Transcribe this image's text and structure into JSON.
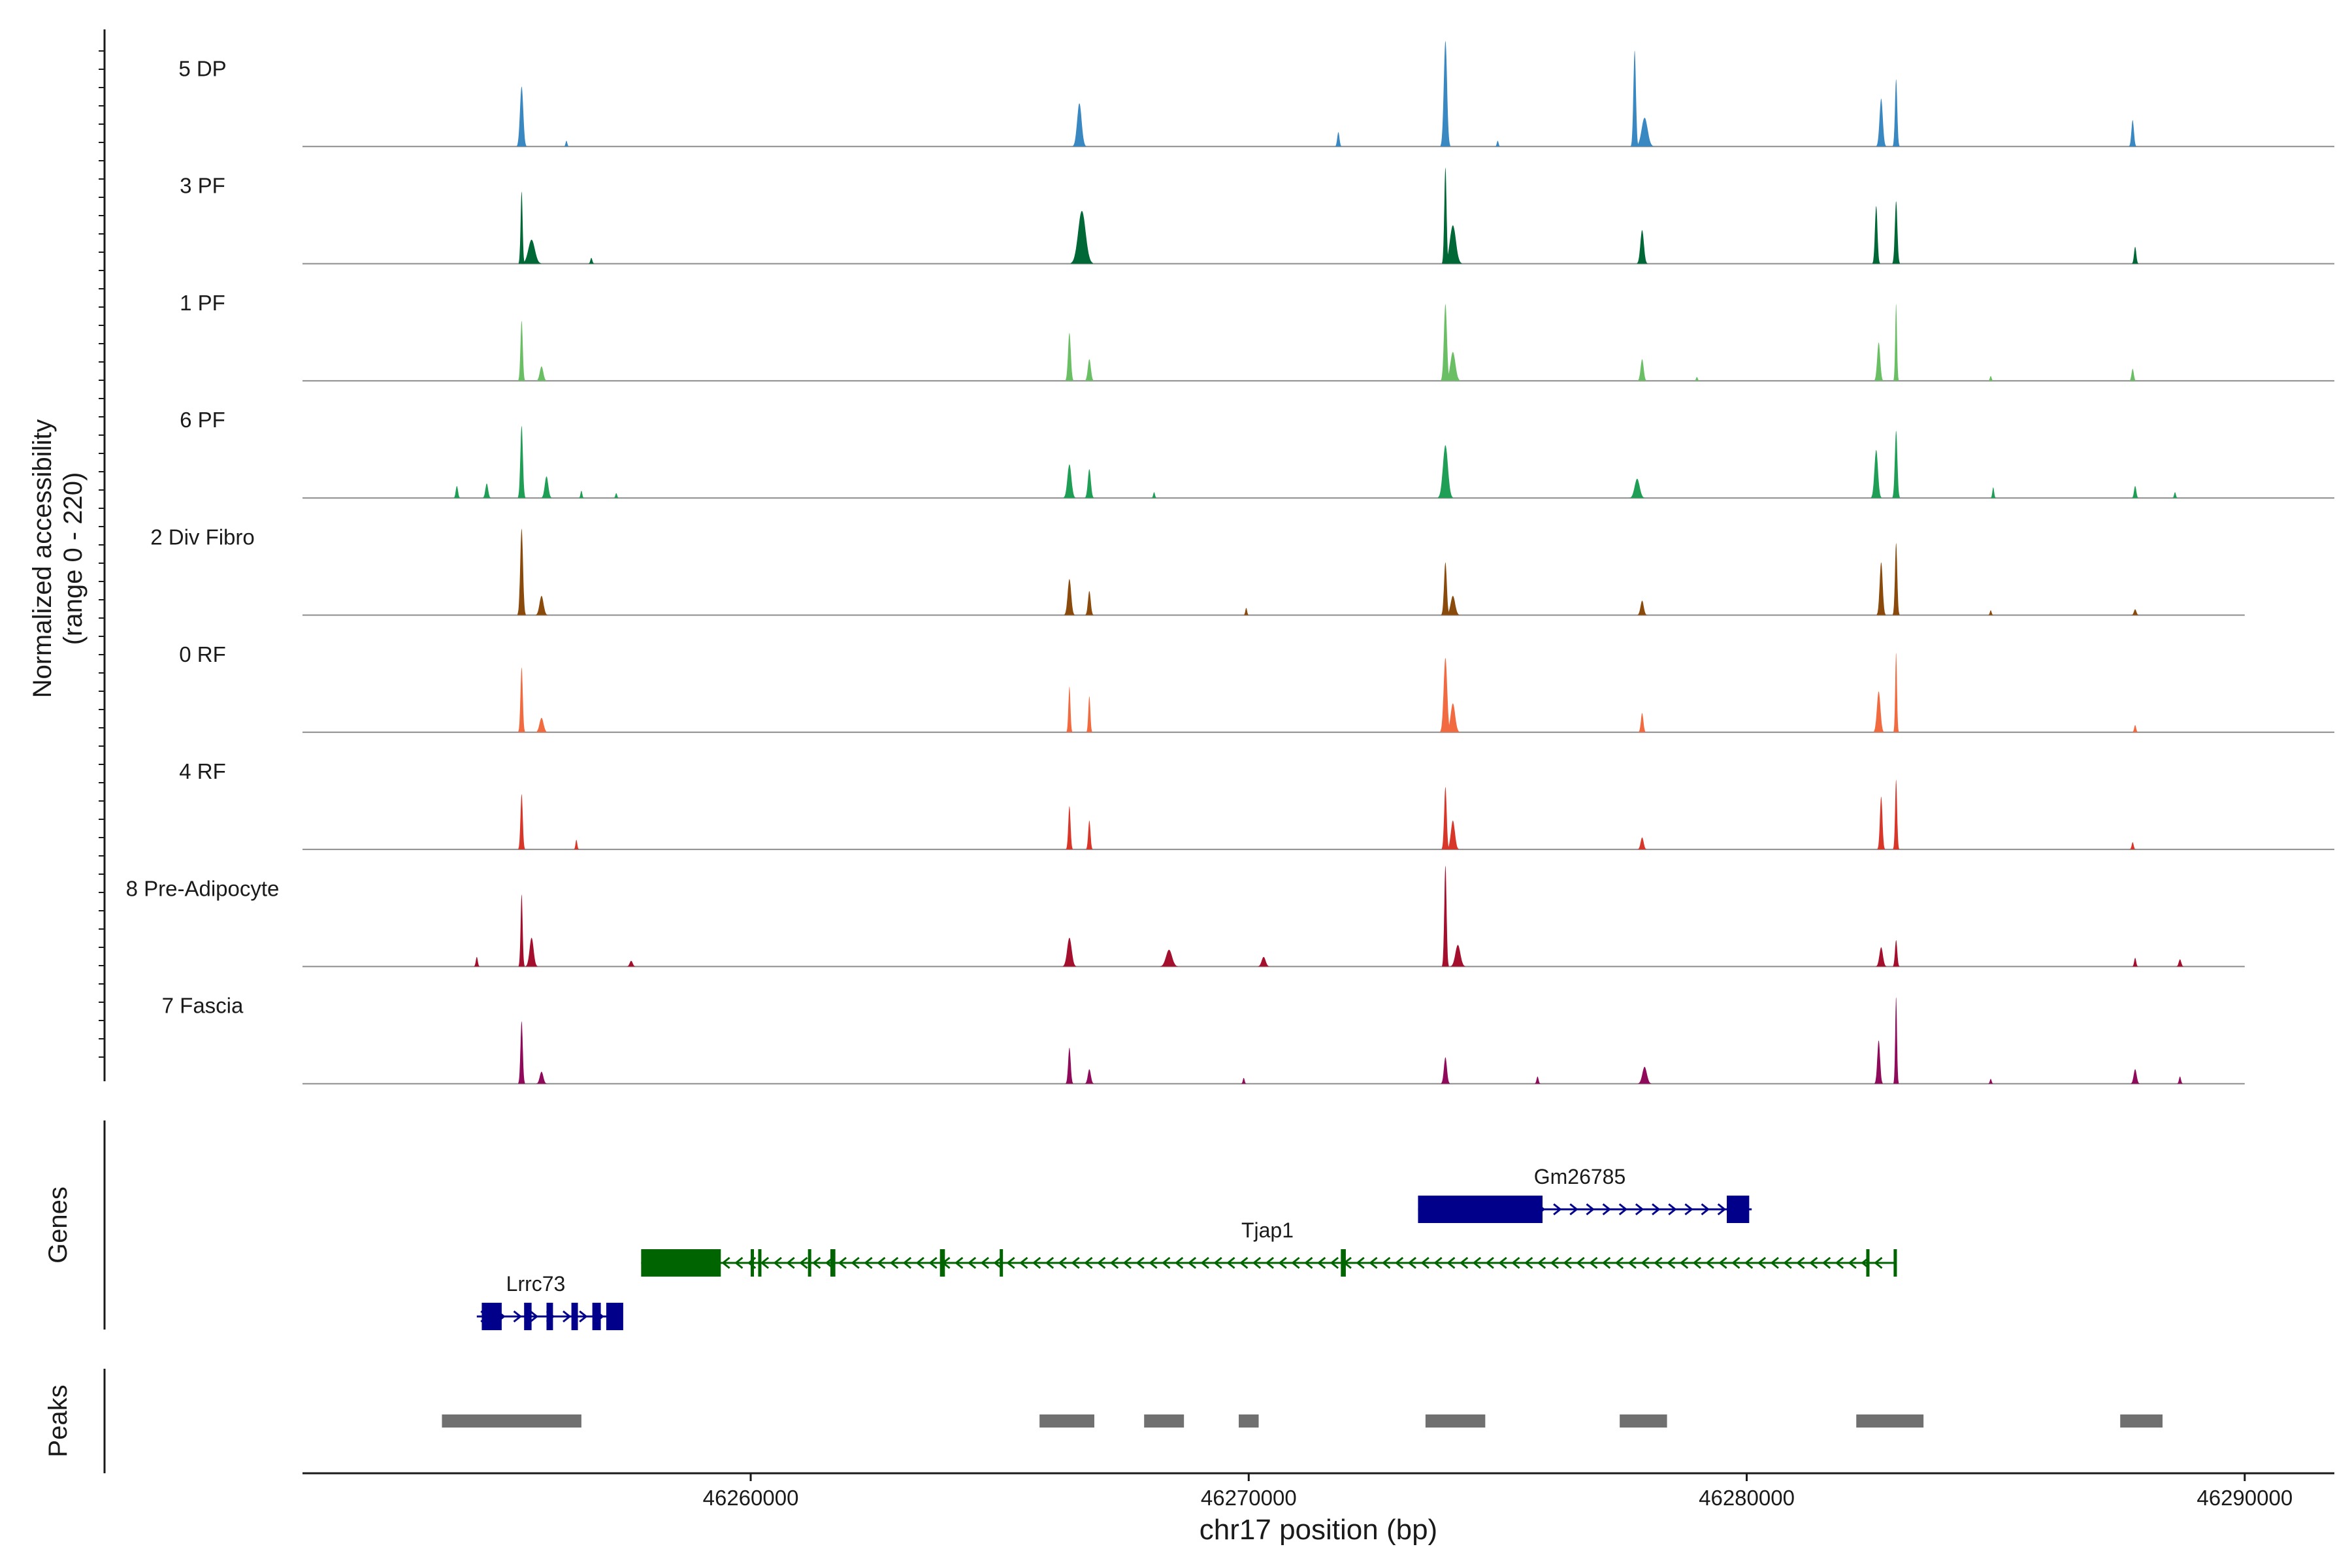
{
  "chart_data": {
    "type": "area",
    "title": "",
    "ylabel_line1": "Normalized accessibility",
    "ylabel_line2": "(range 0 - 220)",
    "yrange": [
      0,
      220
    ],
    "xlabel": "chr17 position (bp)",
    "chromosome": "chr17",
    "xlim": [
      46251000,
      46291800
    ],
    "xticks": [
      46260000,
      46270000,
      46280000,
      46290000
    ],
    "xtick_labels": [
      "46260000",
      "46270000",
      "46280000",
      "46290000"
    ],
    "coverage_tracks": [
      {
        "name": "5 DP",
        "color": "#3a88c2",
        "track_end": 46291800,
        "peaks": [
          [
            46255400,
            125,
            65
          ],
          [
            46256300,
            12,
            35
          ],
          [
            46266600,
            90,
            90
          ],
          [
            46271800,
            30,
            45
          ],
          [
            46273950,
            220,
            65
          ],
          [
            46275000,
            12,
            35
          ],
          [
            46277750,
            200,
            50
          ],
          [
            46277950,
            60,
            120
          ],
          [
            46282700,
            100,
            65
          ],
          [
            46283000,
            140,
            45
          ],
          [
            46287750,
            55,
            50
          ]
        ]
      },
      {
        "name": "3 PF",
        "color": "#006837",
        "track_end": 46291800,
        "peaks": [
          [
            46255400,
            150,
            40
          ],
          [
            46255600,
            50,
            130
          ],
          [
            46256800,
            12,
            40
          ],
          [
            46266650,
            110,
            150
          ],
          [
            46273950,
            200,
            45
          ],
          [
            46274100,
            80,
            120
          ],
          [
            46277900,
            70,
            70
          ],
          [
            46282600,
            120,
            50
          ],
          [
            46283000,
            130,
            50
          ],
          [
            46287800,
            35,
            45
          ]
        ]
      },
      {
        "name": "1 PF",
        "color": "#6abf64",
        "track_end": 46291800,
        "peaks": [
          [
            46255400,
            125,
            45
          ],
          [
            46255800,
            30,
            70
          ],
          [
            46266400,
            100,
            55
          ],
          [
            46266800,
            45,
            60
          ],
          [
            46273950,
            160,
            60
          ],
          [
            46274100,
            60,
            100
          ],
          [
            46277900,
            45,
            60
          ],
          [
            46279000,
            8,
            35
          ],
          [
            46282650,
            80,
            60
          ],
          [
            46283000,
            160,
            35
          ],
          [
            46284900,
            10,
            35
          ],
          [
            46287750,
            25,
            45
          ]
        ]
      },
      {
        "name": "6 PF",
        "color": "#1f9e56",
        "track_end": 46291800,
        "peaks": [
          [
            46254100,
            25,
            45
          ],
          [
            46254700,
            30,
            55
          ],
          [
            46255400,
            150,
            50
          ],
          [
            46255900,
            45,
            70
          ],
          [
            46256600,
            15,
            35
          ],
          [
            46257300,
            10,
            35
          ],
          [
            46266400,
            70,
            80
          ],
          [
            46266800,
            60,
            60
          ],
          [
            46268100,
            12,
            35
          ],
          [
            46273950,
            110,
            100
          ],
          [
            46277800,
            40,
            100
          ],
          [
            46282600,
            100,
            70
          ],
          [
            46283000,
            140,
            50
          ],
          [
            46284950,
            22,
            35
          ],
          [
            46287800,
            25,
            45
          ],
          [
            46288600,
            12,
            35
          ]
        ]
      },
      {
        "name": "2 Div Fibro",
        "color": "#8a4a0c",
        "track_end": 46290000,
        "peaks": [
          [
            46255400,
            180,
            55
          ],
          [
            46255800,
            40,
            80
          ],
          [
            46266400,
            75,
            70
          ],
          [
            46266800,
            50,
            55
          ],
          [
            46269950,
            15,
            35
          ],
          [
            46273950,
            110,
            55
          ],
          [
            46274100,
            40,
            90
          ],
          [
            46277900,
            30,
            65
          ],
          [
            46282700,
            110,
            60
          ],
          [
            46283000,
            150,
            45
          ],
          [
            46284900,
            10,
            35
          ],
          [
            46287800,
            12,
            50
          ]
        ]
      },
      {
        "name": "0 RF",
        "color": "#f26b40",
        "track_end": 46291800,
        "peaks": [
          [
            46255400,
            135,
            45
          ],
          [
            46255800,
            30,
            80
          ],
          [
            46266400,
            95,
            40
          ],
          [
            46266800,
            75,
            40
          ],
          [
            46273950,
            155,
            70
          ],
          [
            46274100,
            60,
            90
          ],
          [
            46277900,
            40,
            50
          ],
          [
            46282650,
            85,
            70
          ],
          [
            46283000,
            165,
            35
          ],
          [
            46287800,
            15,
            40
          ]
        ]
      },
      {
        "name": "4 RF",
        "color": "#d9362a",
        "track_end": 46291800,
        "peaks": [
          [
            46255400,
            115,
            45
          ],
          [
            46256500,
            20,
            35
          ],
          [
            46266400,
            90,
            45
          ],
          [
            46266800,
            60,
            45
          ],
          [
            46273950,
            130,
            50
          ],
          [
            46274100,
            60,
            80
          ],
          [
            46277900,
            25,
            60
          ],
          [
            46282700,
            110,
            50
          ],
          [
            46283000,
            145,
            40
          ],
          [
            46287750,
            15,
            40
          ]
        ]
      },
      {
        "name": "8 Pre-Adipocyte",
        "color": "#a50f2e",
        "track_end": 46290000,
        "peaks": [
          [
            46254500,
            20,
            40
          ],
          [
            46255400,
            150,
            40
          ],
          [
            46255600,
            60,
            80
          ],
          [
            46257600,
            12,
            60
          ],
          [
            46266400,
            60,
            90
          ],
          [
            46268400,
            35,
            120
          ],
          [
            46270300,
            20,
            80
          ],
          [
            46273950,
            210,
            45
          ],
          [
            46274200,
            45,
            100
          ],
          [
            46282700,
            40,
            70
          ],
          [
            46283000,
            55,
            45
          ],
          [
            46287800,
            18,
            40
          ],
          [
            46288700,
            15,
            50
          ]
        ]
      },
      {
        "name": "7 Fascia",
        "color": "#8f0a5a",
        "track_end": 46290000,
        "peaks": [
          [
            46255400,
            130,
            45
          ],
          [
            46255800,
            25,
            70
          ],
          [
            46266400,
            75,
            50
          ],
          [
            46266800,
            30,
            60
          ],
          [
            46269900,
            12,
            35
          ],
          [
            46273950,
            55,
            60
          ],
          [
            46275800,
            15,
            40
          ],
          [
            46277950,
            35,
            90
          ],
          [
            46282650,
            90,
            55
          ],
          [
            46283000,
            180,
            35
          ],
          [
            46284900,
            10,
            35
          ],
          [
            46287800,
            30,
            60
          ],
          [
            46288700,
            15,
            40
          ]
        ]
      }
    ],
    "genes_label": "Genes",
    "genes": [
      {
        "name": "Gm26785",
        "color": "#00008b",
        "strand": "+",
        "start": 46273400,
        "end": 46280100,
        "exons": [
          [
            46273400,
            46275900
          ],
          [
            46279600,
            46280050
          ]
        ]
      },
      {
        "name": "Tjap1",
        "color": "#006400",
        "strand": "-",
        "start": 46257800,
        "end": 46283000,
        "exons": [
          [
            46257800,
            46259400
          ],
          [
            46260000,
            46260050
          ],
          [
            46260150,
            46260200
          ],
          [
            46261150,
            46261200
          ],
          [
            46261600,
            46261700
          ],
          [
            46263800,
            46263900
          ],
          [
            46265000,
            46265060
          ],
          [
            46271850,
            46271950
          ],
          [
            46282400,
            46282460
          ],
          [
            46282950,
            46283000
          ]
        ]
      },
      {
        "name": "Lrrc73",
        "color": "#00008b",
        "strand": "+",
        "start": 46254500,
        "end": 46257100,
        "exons": [
          [
            46254600,
            46255000
          ],
          [
            46255450,
            46255600
          ],
          [
            46255900,
            46256030
          ],
          [
            46256400,
            46256530
          ],
          [
            46256820,
            46256990
          ],
          [
            46257100,
            46257440
          ]
        ]
      }
    ],
    "peaks_label": "Peaks",
    "peak_regions": [
      [
        46253800,
        46256600
      ],
      [
        46265800,
        46266900
      ],
      [
        46267900,
        46268700
      ],
      [
        46269800,
        46270200
      ],
      [
        46273550,
        46274750
      ],
      [
        46277450,
        46278400
      ],
      [
        46282200,
        46283550
      ],
      [
        46287500,
        46288350
      ]
    ]
  },
  "colors": {
    "axis": "#1a1a1a",
    "baseline": "#8c8c8c",
    "peak_bar": "#707070"
  }
}
